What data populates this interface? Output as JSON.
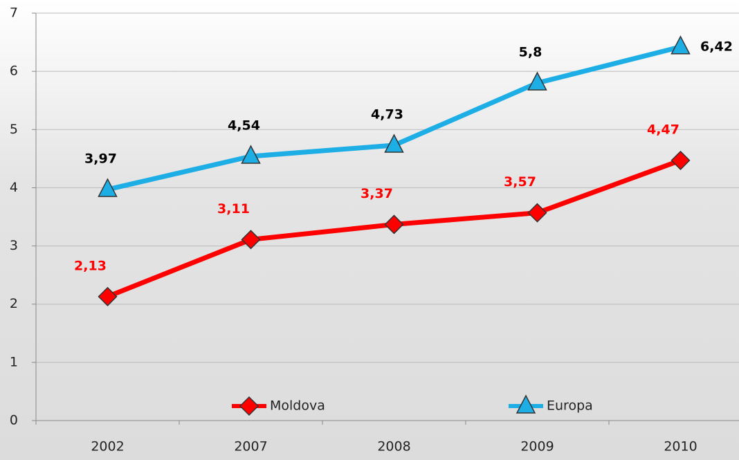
{
  "chart_data": {
    "type": "line",
    "categories": [
      "2002",
      "2007",
      "2008",
      "2009",
      "2010"
    ],
    "series": [
      {
        "name": "Moldova",
        "color": "#ff0000",
        "marker": "diamond",
        "label_color": "#ff0000",
        "values": [
          2.13,
          3.11,
          3.37,
          3.57,
          4.47
        ],
        "value_labels": [
          "2,13",
          "3,11",
          "3,37",
          "3,57",
          "4,47"
        ]
      },
      {
        "name": "Europa",
        "color": "#1eaee6",
        "marker": "triangle",
        "label_color": "#000000",
        "values": [
          3.97,
          4.54,
          4.73,
          5.8,
          6.42
        ],
        "value_labels": [
          "3,97",
          "4,54",
          "4,73",
          "5,8",
          "6,42"
        ]
      }
    ],
    "ylim": [
      0,
      7
    ],
    "yticks": [
      0,
      1,
      2,
      3,
      4,
      5,
      6,
      7
    ],
    "grid": true
  }
}
